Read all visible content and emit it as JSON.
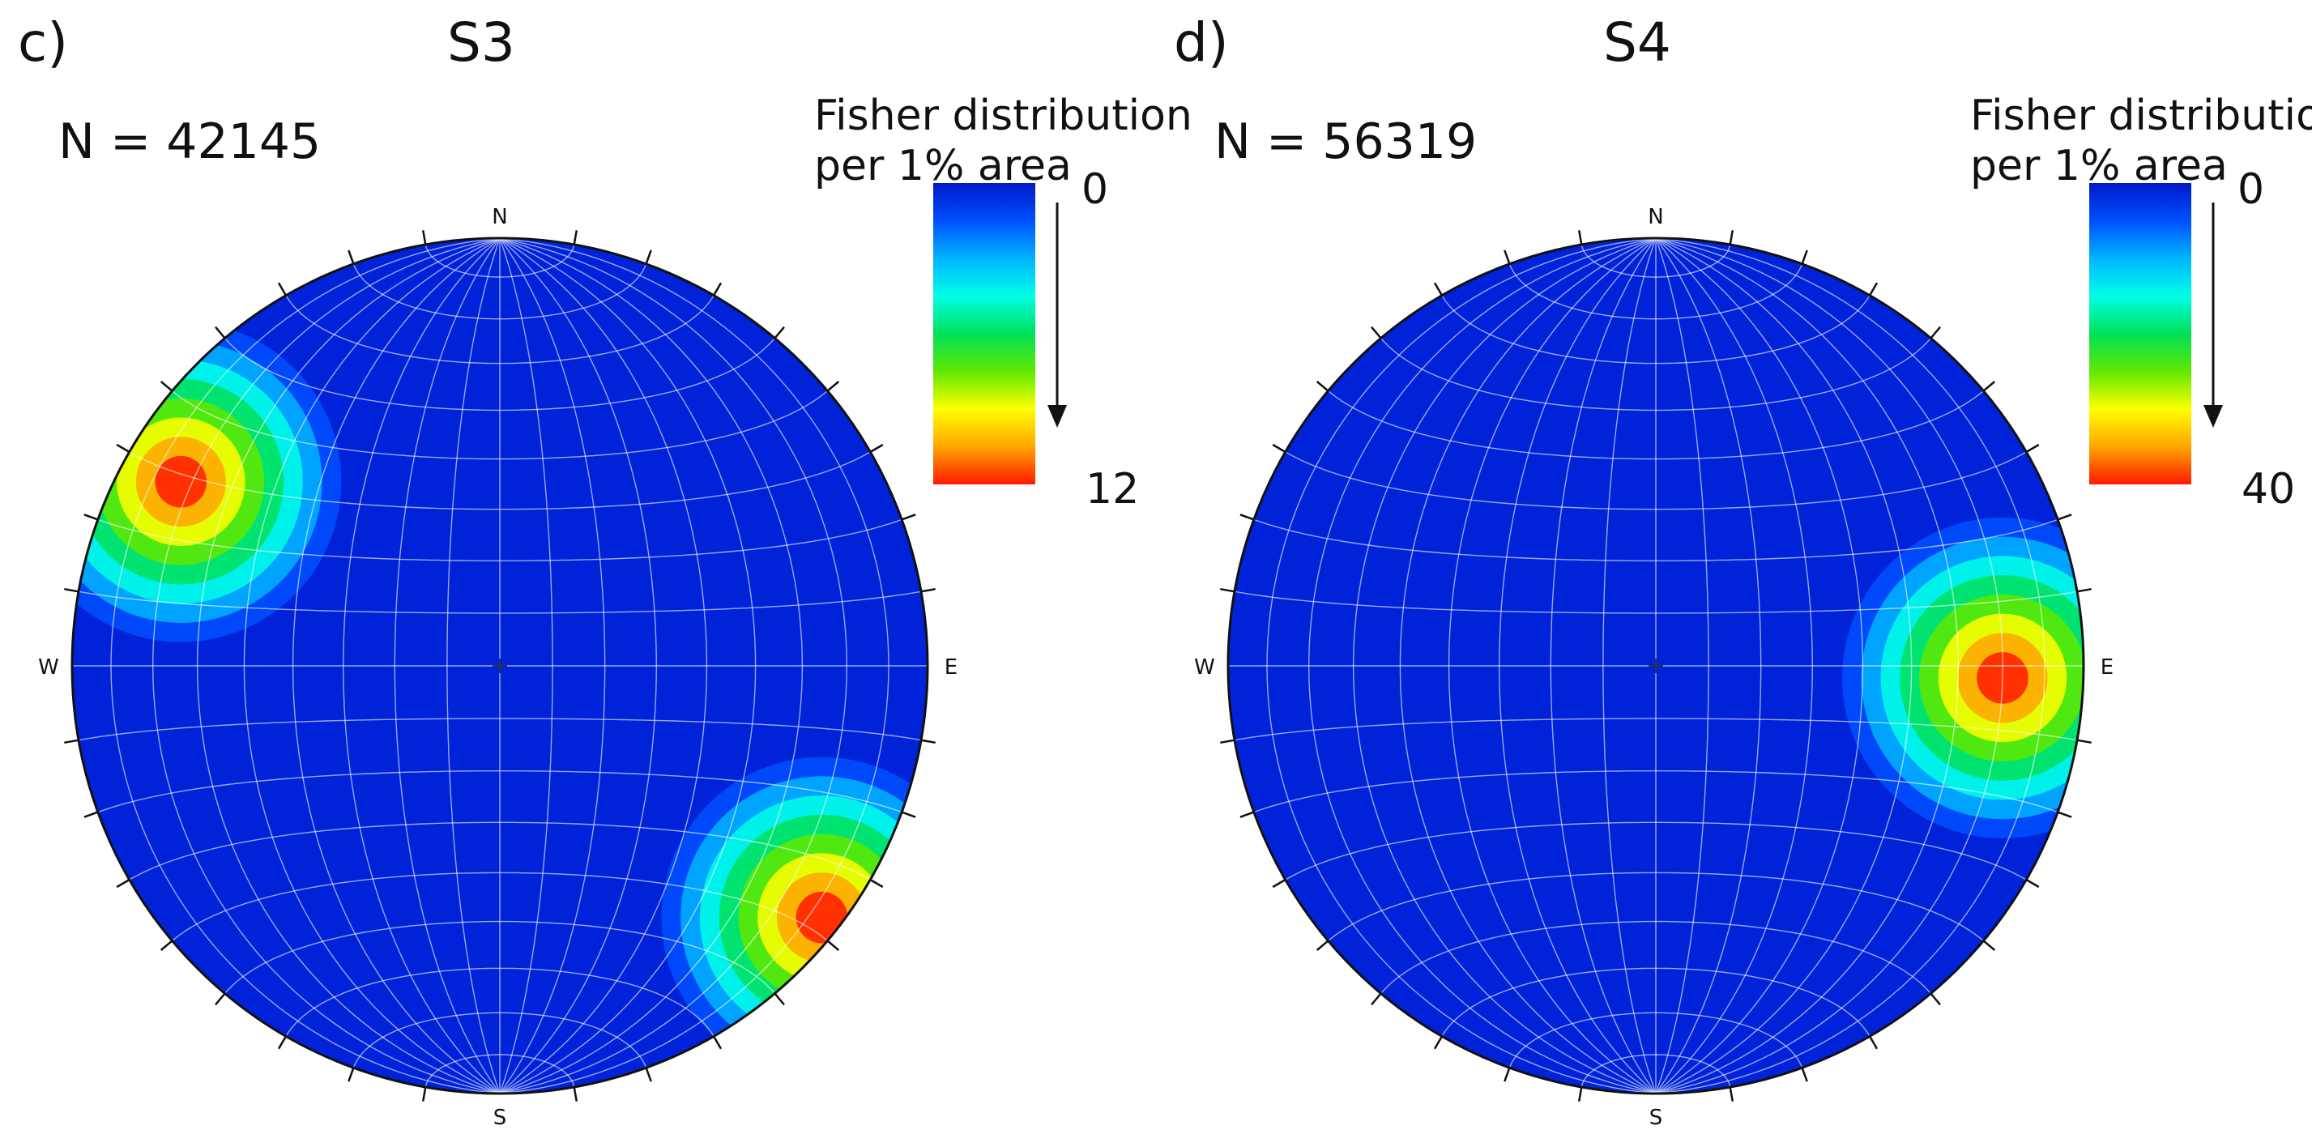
{
  "chart_data": [
    {
      "type": "heatmap",
      "panel_label": "c)",
      "title": "S3",
      "n_label": "N = 42145",
      "colorbar": {
        "title_line1": "Fisher distribution",
        "title_line2": "per 1% area",
        "min": 0,
        "max": 12,
        "min_label": "0",
        "max_label": "12"
      },
      "directions": {
        "north": "N",
        "south": "S",
        "east": "E",
        "west": "W"
      },
      "concentrations": [
        {
          "trend": 300,
          "plunge": 15,
          "peak": 12
        },
        {
          "trend": 128,
          "plunge": 5,
          "peak": 12
        }
      ]
    },
    {
      "type": "heatmap",
      "panel_label": "d)",
      "title": "S4",
      "n_label": "N = 56319",
      "colorbar": {
        "title_line1": "Fisher distribution",
        "title_line2": "per 1% area",
        "min": 0,
        "max": 40,
        "min_label": "0",
        "max_label": "40"
      },
      "directions": {
        "north": "N",
        "south": "S",
        "east": "E",
        "west": "W"
      },
      "concentrations": [
        {
          "trend": 92,
          "plunge": 20,
          "peak": 40
        }
      ]
    }
  ],
  "colors": {
    "background": "#0023d9",
    "colormap": [
      "#0019c8",
      "#0050ff",
      "#00b4ff",
      "#00ffe6",
      "#00e05a",
      "#5fe800",
      "#ffff00",
      "#ffa500",
      "#ff1a00"
    ]
  }
}
